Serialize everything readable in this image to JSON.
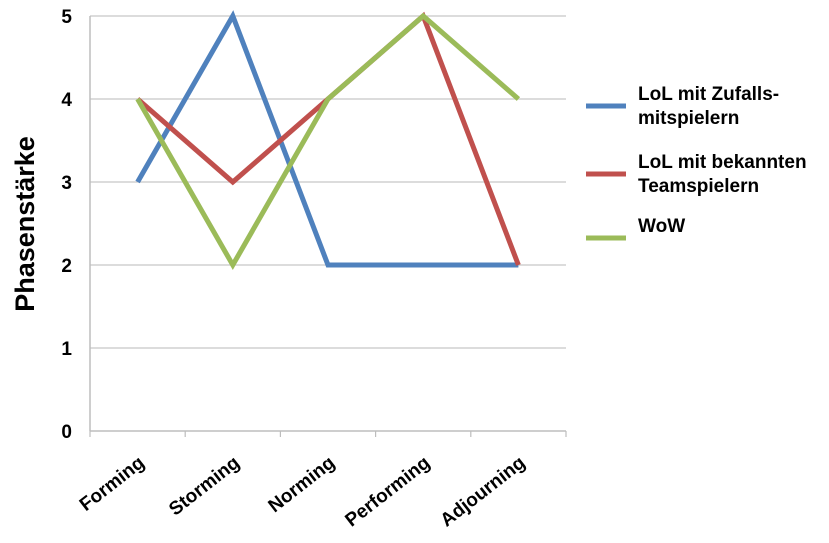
{
  "chart_data": {
    "type": "line",
    "categories": [
      "Forming",
      "Storming",
      "Norming",
      "Performing",
      "Adjourning"
    ],
    "ylabel": "Phasenstärke",
    "xlabel": "",
    "title": "",
    "ylim": [
      0,
      5
    ],
    "yticks": [
      "0",
      "1",
      "2",
      "3",
      "4",
      "5"
    ],
    "grid": true,
    "legend_position": "right",
    "series": [
      {
        "name_lines": [
          "LoL mit Zufalls-",
          "mitspielern"
        ],
        "color": "#4f81bd",
        "values": [
          3,
          5,
          2,
          2,
          2
        ]
      },
      {
        "name_lines": [
          "LoL mit bekannten",
          "Teamspielern"
        ],
        "color": "#c0504d",
        "values": [
          4,
          3,
          4,
          5,
          2
        ]
      },
      {
        "name_lines": [
          "WoW"
        ],
        "color": "#9bbb59",
        "values": [
          4,
          2,
          4,
          5,
          4
        ]
      }
    ]
  }
}
